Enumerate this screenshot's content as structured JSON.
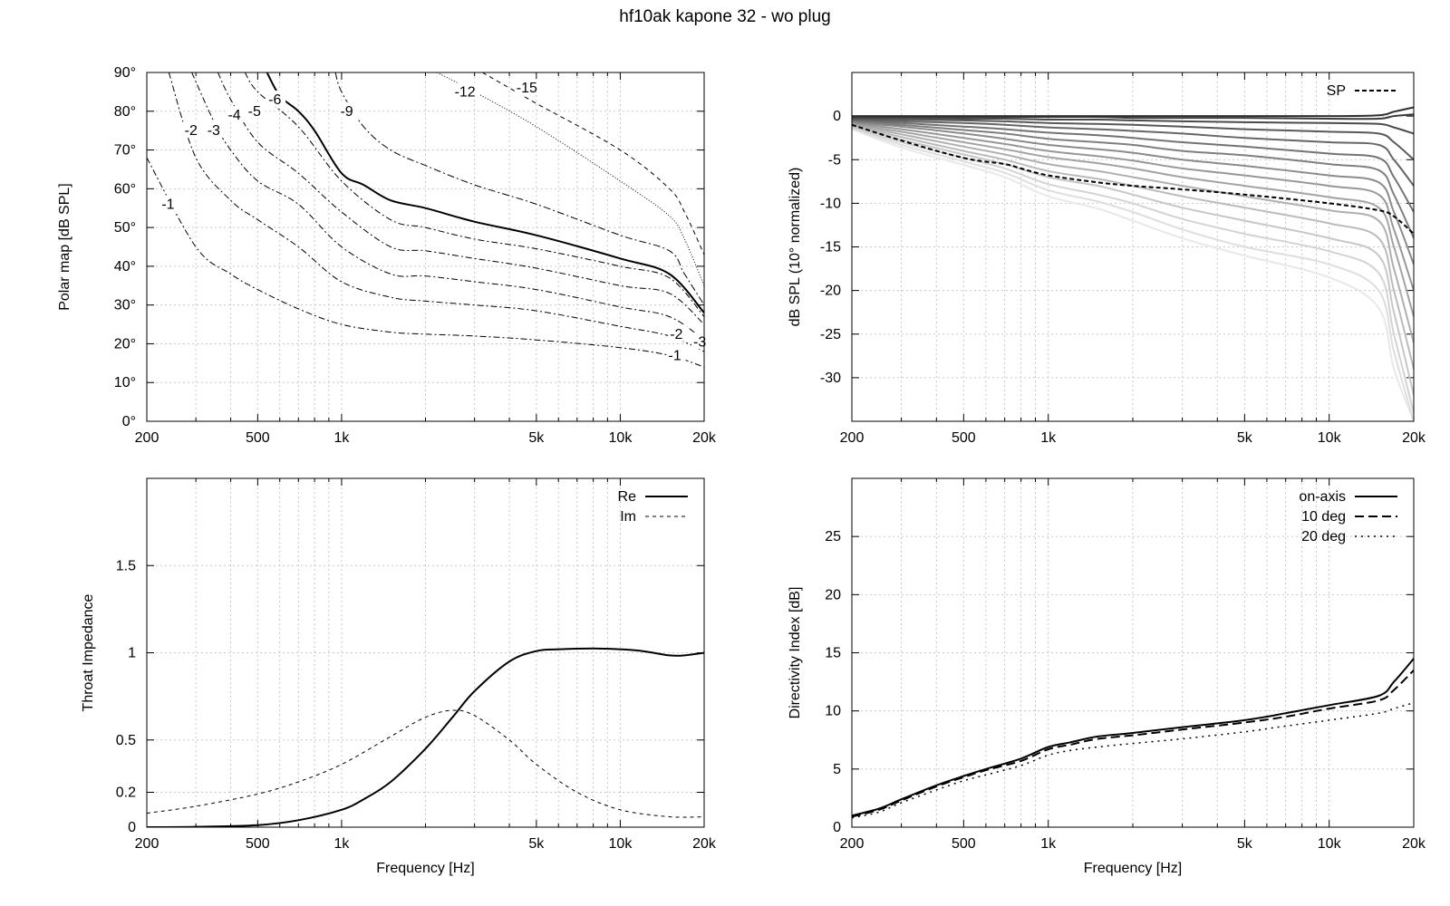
{
  "title": "hf10ak kapone 32 - wo plug",
  "x_ticks": [
    {
      "v": 200,
      "label": "200"
    },
    {
      "v": 500,
      "label": "500"
    },
    {
      "v": 1000,
      "label": "1k"
    },
    {
      "v": 5000,
      "label": "5k"
    },
    {
      "v": 10000,
      "label": "10k"
    },
    {
      "v": 20000,
      "label": "20k"
    }
  ],
  "chart_data": [
    {
      "id": "polar",
      "type": "line",
      "subtype": "contour",
      "xlabel": "",
      "ylabel": "Polar map [dB SPL]",
      "xscale": "log",
      "xlim": [
        200,
        20000
      ],
      "ylim": [
        0,
        90
      ],
      "y_ticks": [
        {
          "v": 0,
          "label": "0°"
        },
        {
          "v": 10,
          "label": "10°"
        },
        {
          "v": 20,
          "label": "20°"
        },
        {
          "v": 30,
          "label": "30°"
        },
        {
          "v": 40,
          "label": "40°"
        },
        {
          "v": 50,
          "label": "50°"
        },
        {
          "v": 60,
          "label": "60°"
        },
        {
          "v": 70,
          "label": "70°"
        },
        {
          "v": 80,
          "label": "80°"
        },
        {
          "v": 90,
          "label": "90°"
        }
      ],
      "series": [
        {
          "name": "-1",
          "dash": "7 3 2 3",
          "width": 1,
          "x": [
            200,
            300,
            400,
            500,
            700,
            1000,
            1500,
            2000,
            3000,
            5000,
            10000,
            15000,
            20000
          ],
          "y": [
            68,
            45,
            38,
            34,
            29,
            25,
            23,
            22.5,
            22,
            21,
            19,
            17,
            14
          ]
        },
        {
          "name": "-2",
          "dash": "7 3 2 3",
          "width": 1,
          "x": [
            240,
            300,
            400,
            500,
            700,
            1000,
            1500,
            2000,
            3000,
            5000,
            10000,
            15000,
            20000
          ],
          "y": [
            90,
            68,
            57,
            52,
            45,
            36,
            32,
            31,
            30,
            28.5,
            24.5,
            22,
            18
          ]
        },
        {
          "name": "-3",
          "dash": "7 3 2 3",
          "width": 1,
          "x": [
            290,
            350,
            400,
            500,
            700,
            1000,
            1500,
            2000,
            3000,
            5000,
            10000,
            15000,
            20000
          ],
          "y": [
            90,
            77,
            70,
            62,
            56,
            45,
            38,
            37.5,
            36,
            34,
            29.5,
            27,
            21
          ]
        },
        {
          "name": "-4",
          "dash": "7 3 2 3",
          "width": 1,
          "x": [
            360,
            400,
            500,
            700,
            1000,
            1500,
            2000,
            3000,
            5000,
            10000,
            15000,
            20000
          ],
          "y": [
            90,
            83,
            72,
            64,
            54,
            45,
            44,
            42,
            39.5,
            35,
            33,
            25
          ]
        },
        {
          "name": "-5",
          "dash": "7 3 2 3",
          "width": 1,
          "x": [
            450,
            500,
            700,
            1000,
            1500,
            2000,
            3000,
            5000,
            10000,
            15000,
            20000
          ],
          "y": [
            90,
            85,
            76,
            62,
            52,
            50,
            47,
            44.5,
            40,
            37,
            27
          ]
        },
        {
          "name": "-6",
          "dash": "",
          "width": 2,
          "x": [
            540,
            600,
            700,
            800,
            1000,
            1200,
            1500,
            2000,
            3000,
            5000,
            10000,
            15000,
            20000
          ],
          "y": [
            90,
            84,
            80,
            75,
            64,
            61,
            57,
            55,
            51.5,
            48,
            42,
            38,
            28
          ]
        },
        {
          "name": "-9",
          "dash": "8 3 2 3",
          "width": 1,
          "x": [
            950,
            1000,
            1200,
            1500,
            2000,
            3000,
            5000,
            10000,
            15000,
            17000,
            20000
          ],
          "y": [
            90,
            85,
            76,
            70,
            66,
            61,
            56,
            48,
            44,
            38,
            30
          ]
        },
        {
          "name": "-12",
          "dash": "1 2",
          "width": 1,
          "x": [
            2200,
            3000,
            5000,
            10000,
            15000,
            17000,
            20000
          ],
          "y": [
            90,
            85,
            76,
            62,
            53,
            47,
            35
          ]
        },
        {
          "name": "-15",
          "dash": "5 4",
          "width": 1,
          "x": [
            3200,
            4000,
            5000,
            10000,
            15000,
            17000,
            20000
          ],
          "y": [
            90,
            86,
            82,
            70,
            60,
            54,
            43
          ]
        }
      ],
      "contour_labels": [
        {
          "text": "-1",
          "x": 240,
          "y": 56
        },
        {
          "text": "-2",
          "x": 290,
          "y": 75
        },
        {
          "text": "-3",
          "x": 350,
          "y": 75
        },
        {
          "text": "-4",
          "x": 415,
          "y": 79
        },
        {
          "text": "-5",
          "x": 490,
          "y": 80
        },
        {
          "text": "-6",
          "x": 580,
          "y": 83
        },
        {
          "text": "-9",
          "x": 1050,
          "y": 80
        },
        {
          "text": "-12",
          "x": 2700,
          "y": 85
        },
        {
          "text": "-15",
          "x": 4500,
          "y": 86
        },
        {
          "text": "-2",
          "x": 16000,
          "y": 22.5
        },
        {
          "text": "-1",
          "x": 15800,
          "y": 17
        },
        {
          "text": "-3",
          "x": 20000,
          "y": 20.5
        }
      ]
    },
    {
      "id": "spl",
      "type": "line",
      "xlabel": "",
      "ylabel": "dB SPL (10° normalized)",
      "xscale": "log",
      "xlim": [
        200,
        20000
      ],
      "ylim": [
        -35,
        5
      ],
      "y_ticks": [
        {
          "v": 0,
          "label": "0"
        },
        {
          "v": -5,
          "label": "-5"
        },
        {
          "v": -10,
          "label": "-10"
        },
        {
          "v": -15,
          "label": "-15"
        },
        {
          "v": -20,
          "label": "-20"
        },
        {
          "v": -25,
          "label": "-25"
        },
        {
          "v": -30,
          "label": "-30"
        }
      ],
      "legend": {
        "position": "top-right"
      },
      "x": [
        200,
        300,
        500,
        700,
        1000,
        1500,
        2000,
        3000,
        5000,
        10000,
        15000,
        17000,
        20000
      ],
      "fan": [
        {
          "color": "#2e2e2e",
          "values": [
            0,
            0,
            0,
            0,
            0,
            0,
            0,
            0,
            0,
            0,
            0.1,
            0.5,
            1
          ]
        },
        {
          "color": "#3c3c3c",
          "values": [
            -0.1,
            -0.1,
            -0.1,
            -0.1,
            -0.1,
            -0.1,
            -0.2,
            -0.2,
            -0.2,
            -0.3,
            -0.3,
            0,
            0.2
          ]
        },
        {
          "color": "#4a4a4a",
          "values": [
            -0.2,
            -0.2,
            -0.3,
            -0.3,
            -0.4,
            -0.4,
            -0.5,
            -0.6,
            -0.7,
            -0.8,
            -0.9,
            -1.3,
            -2
          ]
        },
        {
          "color": "#585858",
          "values": [
            -0.3,
            -0.4,
            -0.5,
            -0.6,
            -0.8,
            -0.9,
            -1,
            -1.2,
            -1.5,
            -1.8,
            -2,
            -3,
            -5
          ]
        },
        {
          "color": "#666666",
          "values": [
            -0.4,
            -0.6,
            -0.8,
            -1,
            -1.3,
            -1.5,
            -1.7,
            -2,
            -2.5,
            -3,
            -3.3,
            -5,
            -8
          ]
        },
        {
          "color": "#737373",
          "values": [
            -0.5,
            -0.8,
            -1.2,
            -1.5,
            -1.9,
            -2.2,
            -2.5,
            -3,
            -3.5,
            -4.3,
            -4.8,
            -7,
            -11
          ]
        },
        {
          "color": "#7f7f7f",
          "values": [
            -0.6,
            -1,
            -1.6,
            -2,
            -2.6,
            -3,
            -3.3,
            -4,
            -4.5,
            -5.5,
            -6.2,
            -9,
            -14
          ]
        },
        {
          "color": "#8b8b8b",
          "values": [
            -0.7,
            -1.2,
            -2,
            -2.6,
            -3.3,
            -3.8,
            -4.2,
            -5,
            -5.7,
            -6.8,
            -7.6,
            -11,
            -17
          ]
        },
        {
          "color": "#979797",
          "values": [
            -0.8,
            -1.5,
            -2.5,
            -3.2,
            -4,
            -4.6,
            -5.1,
            -6,
            -6.8,
            -8,
            -9,
            -13,
            -20
          ]
        },
        {
          "color": "#a3a3a3",
          "values": [
            -0.9,
            -1.8,
            -3,
            -3.8,
            -4.7,
            -5.4,
            -6,
            -7,
            -8,
            -9.3,
            -10.5,
            -15,
            -23
          ]
        },
        {
          "color": "#afafaf",
          "values": [
            -1,
            -2.1,
            -3.5,
            -4.4,
            -5.5,
            -6.3,
            -7,
            -8,
            -9.2,
            -10.8,
            -12,
            -17.5,
            -26
          ]
        },
        {
          "color": "#bbbbbb",
          "values": [
            -1.1,
            -2.4,
            -4,
            -5,
            -6.3,
            -7.2,
            -8,
            -9.2,
            -10.5,
            -12.3,
            -14,
            -20,
            -29
          ]
        },
        {
          "color": "#c7c7c7",
          "values": [
            -1.2,
            -2.7,
            -4.4,
            -5.5,
            -7,
            -8,
            -9,
            -10.5,
            -12,
            -14,
            -16,
            -22.5,
            -32
          ]
        },
        {
          "color": "#d3d3d3",
          "values": [
            -1.3,
            -3,
            -4.8,
            -6,
            -7.8,
            -9,
            -10,
            -11.8,
            -13.5,
            -15.5,
            -18,
            -25,
            -34
          ]
        },
        {
          "color": "#dedede",
          "values": [
            -1.4,
            -3.3,
            -5.2,
            -6.5,
            -8.5,
            -9.8,
            -11,
            -13,
            -15,
            -17,
            -20,
            -27,
            -35
          ]
        },
        {
          "color": "#e8e8e8",
          "values": [
            -1.5,
            -3.6,
            -5.6,
            -7,
            -9.2,
            -10.6,
            -12,
            -14,
            -16,
            -18.5,
            -22,
            -29,
            -35
          ]
        }
      ],
      "series": [
        {
          "name": "SP",
          "dash": "5 3",
          "width": 2,
          "x": [
            200,
            300,
            500,
            700,
            800,
            1000,
            1500,
            2000,
            3000,
            5000,
            10000,
            15000,
            17000,
            20000
          ],
          "values": [
            -1,
            -2.8,
            -4.8,
            -5.5,
            -6,
            -6.8,
            -7.6,
            -8,
            -8.4,
            -9,
            -10,
            -10.8,
            -11.5,
            -13.5
          ]
        }
      ]
    },
    {
      "id": "impedance",
      "type": "line",
      "xlabel": "Frequency [Hz]",
      "ylabel": "Throat Impedance",
      "xscale": "log",
      "xlim": [
        200,
        20000
      ],
      "ylim": [
        0,
        2
      ],
      "y_ticks": [
        {
          "v": 0,
          "label": "0"
        },
        {
          "v": 0.2,
          "label": "0.2"
        },
        {
          "v": 0.5,
          "label": "0.5"
        },
        {
          "v": 1,
          "label": "1"
        },
        {
          "v": 1.5,
          "label": "1.5"
        }
      ],
      "legend": {
        "position": "top-right"
      },
      "series": [
        {
          "name": "Re",
          "dash": "",
          "width": 2,
          "x": [
            200,
            300,
            500,
            700,
            1000,
            1200,
            1500,
            2000,
            2500,
            3000,
            4000,
            5000,
            6000,
            8000,
            10000,
            12000,
            15000,
            17000,
            20000
          ],
          "values": [
            0,
            0.002,
            0.012,
            0.04,
            0.1,
            0.16,
            0.26,
            0.45,
            0.63,
            0.78,
            0.95,
            1.01,
            1.02,
            1.025,
            1.02,
            1.01,
            0.985,
            0.985,
            1.0
          ]
        },
        {
          "name": "Im",
          "dash": "4 4",
          "width": 1,
          "x": [
            200,
            300,
            500,
            700,
            1000,
            1500,
            2000,
            2500,
            3000,
            4000,
            5000,
            7000,
            10000,
            15000,
            20000
          ],
          "values": [
            0.08,
            0.12,
            0.19,
            0.26,
            0.36,
            0.52,
            0.63,
            0.67,
            0.64,
            0.5,
            0.36,
            0.2,
            0.1,
            0.06,
            0.06
          ]
        }
      ]
    },
    {
      "id": "di",
      "type": "line",
      "xlabel": "Frequency [Hz]",
      "ylabel": "Directivity Index [dB]",
      "xscale": "log",
      "xlim": [
        200,
        20000
      ],
      "ylim": [
        0,
        30
      ],
      "y_ticks": [
        {
          "v": 0,
          "label": "0"
        },
        {
          "v": 5,
          "label": "5"
        },
        {
          "v": 10,
          "label": "10"
        },
        {
          "v": 15,
          "label": "15"
        },
        {
          "v": 20,
          "label": "20"
        },
        {
          "v": 25,
          "label": "25"
        }
      ],
      "legend": {
        "position": "top-right"
      },
      "series": [
        {
          "name": "on-axis",
          "dash": "",
          "width": 2,
          "x": [
            200,
            250,
            300,
            400,
            500,
            600,
            800,
            1000,
            1200,
            1500,
            2000,
            3000,
            5000,
            7000,
            10000,
            15000,
            17000,
            20000
          ],
          "values": [
            1,
            1.6,
            2.4,
            3.6,
            4.4,
            5,
            5.9,
            6.9,
            7.3,
            7.8,
            8.1,
            8.6,
            9.2,
            9.8,
            10.5,
            11.3,
            12.5,
            14.5
          ]
        },
        {
          "name": "10 deg",
          "dash": "10 5",
          "width": 2,
          "x": [
            200,
            250,
            300,
            400,
            500,
            600,
            800,
            1000,
            1200,
            1500,
            2000,
            3000,
            5000,
            7000,
            10000,
            15000,
            17000,
            20000
          ],
          "values": [
            0.9,
            1.5,
            2.3,
            3.5,
            4.3,
            4.9,
            5.7,
            6.7,
            7.1,
            7.6,
            7.9,
            8.4,
            9.0,
            9.5,
            10.2,
            10.9,
            11.8,
            13.5
          ]
        },
        {
          "name": "20 deg",
          "dash": "2 5",
          "width": 1.5,
          "x": [
            200,
            250,
            300,
            400,
            500,
            600,
            800,
            1000,
            1200,
            1500,
            2000,
            3000,
            5000,
            7000,
            10000,
            15000,
            17000,
            20000
          ],
          "values": [
            0.8,
            1.3,
            2.1,
            3.2,
            4,
            4.5,
            5.3,
            6.2,
            6.6,
            6.9,
            7.2,
            7.6,
            8.2,
            8.7,
            9.2,
            9.8,
            10.2,
            10.7
          ]
        }
      ]
    }
  ]
}
